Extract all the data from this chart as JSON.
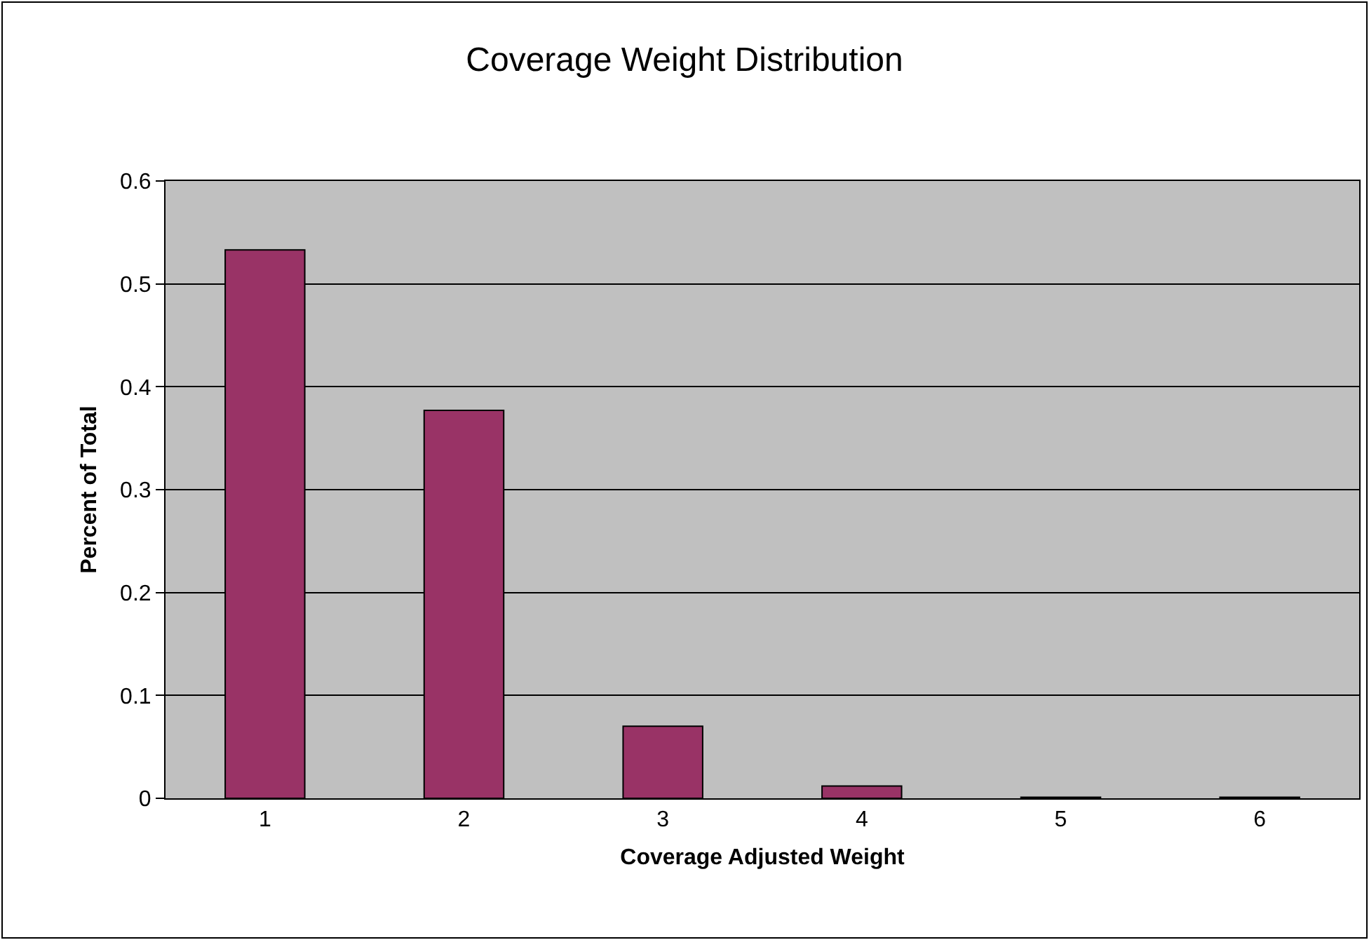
{
  "chart_data": {
    "type": "bar",
    "title": "Coverage Weight Distribution",
    "xlabel": "Coverage Adjusted Weight",
    "ylabel": "Percent of Total",
    "categories": [
      "1",
      "2",
      "3",
      "4",
      "5",
      "6"
    ],
    "values": [
      0.533,
      0.377,
      0.07,
      0.012,
      0.001,
      0.001
    ],
    "color": "#993366",
    "ylim": [
      0,
      0.6
    ],
    "yticks": [
      0,
      0.1,
      0.2,
      0.3,
      0.4,
      0.5,
      0.6
    ],
    "grid": "y"
  }
}
